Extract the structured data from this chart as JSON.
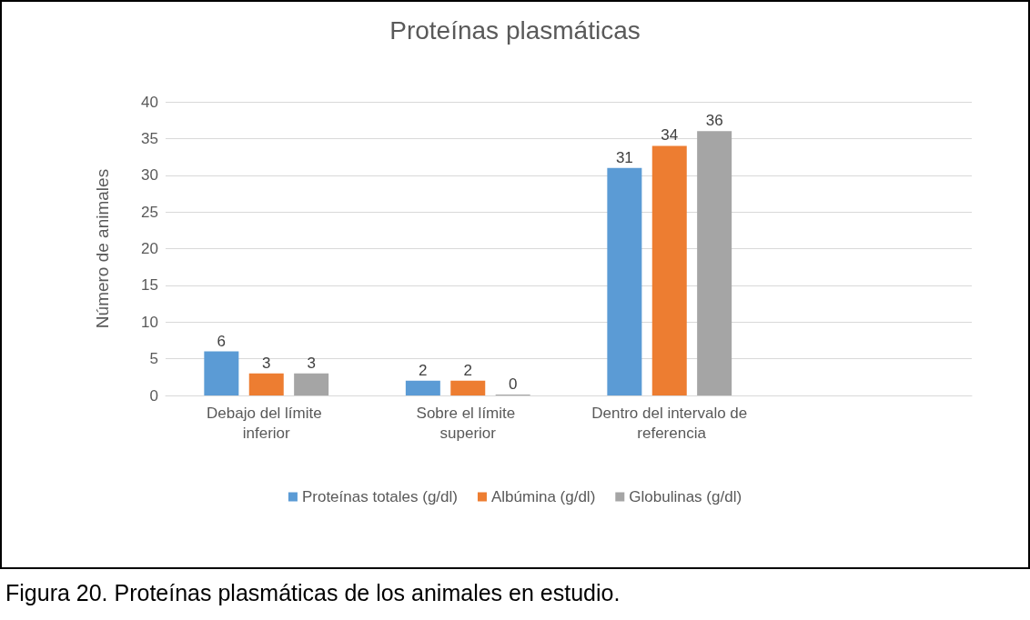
{
  "chart_data": {
    "type": "bar",
    "title": "Proteínas plasmáticas",
    "ylabel": "Número de animales",
    "categories": [
      "Debajo del límite inferior",
      "Sobre el límite superior",
      "Dentro del intervalo de referencia",
      null
    ],
    "series": [
      {
        "name": "Proteínas totales (g/dl)",
        "color": "#5b9bd5",
        "values": [
          6,
          2,
          31,
          null
        ]
      },
      {
        "name": "Albúmina (g/dl)",
        "color": "#ed7d31",
        "values": [
          3,
          2,
          34,
          null
        ]
      },
      {
        "name": "Globulinas (g/dl)",
        "color": "#a5a5a5",
        "values": [
          3,
          0,
          36,
          null
        ]
      }
    ],
    "ylim": [
      0,
      40
    ],
    "yticks": [
      0,
      5,
      10,
      15,
      20,
      25,
      30,
      35,
      40
    ],
    "grid": "y",
    "legend": "bottom",
    "data_labels": true,
    "annotations": [
      "Figura 20. Proteínas plasmáticas de los animales en estudio."
    ]
  }
}
